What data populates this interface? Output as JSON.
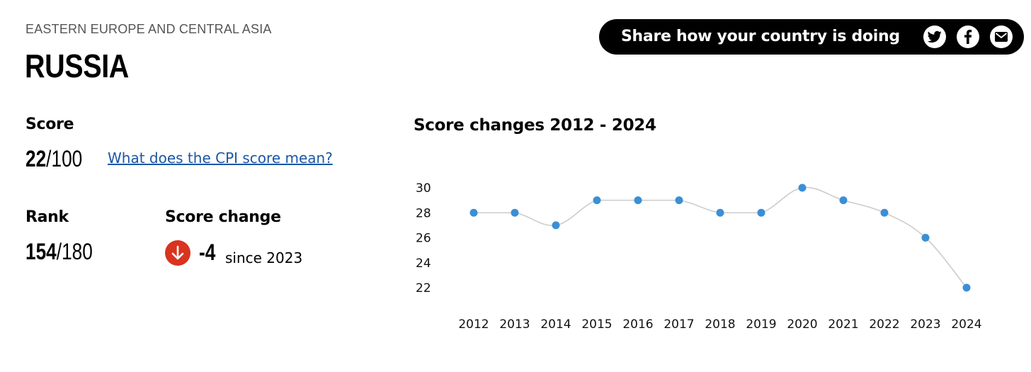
{
  "header": {
    "region": "EASTERN EUROPE AND CENTRAL ASIA",
    "country": "RUSSIA"
  },
  "share": {
    "label": "Share how your country is doing",
    "icons": [
      "twitter-icon",
      "facebook-icon",
      "email-icon"
    ]
  },
  "score": {
    "label": "Score",
    "value": "22",
    "max": "/100",
    "link": "What does the CPI score mean?"
  },
  "rank": {
    "label": "Rank",
    "value": "154",
    "max": "/180"
  },
  "score_change": {
    "label": "Score change",
    "value": "-4",
    "since": "since 2023",
    "direction": "down",
    "color": "#d8341f"
  },
  "chart_data": {
    "type": "line",
    "title": "Score changes 2012 - 2024",
    "x": [
      "2012",
      "2013",
      "2014",
      "2015",
      "2016",
      "2017",
      "2018",
      "2019",
      "2020",
      "2021",
      "2022",
      "2023",
      "2024"
    ],
    "values": [
      28,
      28,
      27,
      29,
      29,
      29,
      28,
      28,
      30,
      29,
      28,
      26,
      22
    ],
    "y_ticks": [
      30,
      28,
      26,
      24,
      22
    ],
    "ylim": [
      22,
      30
    ],
    "grid": false,
    "point_color": "#3a8fd6",
    "line_color": "#cccccc"
  }
}
